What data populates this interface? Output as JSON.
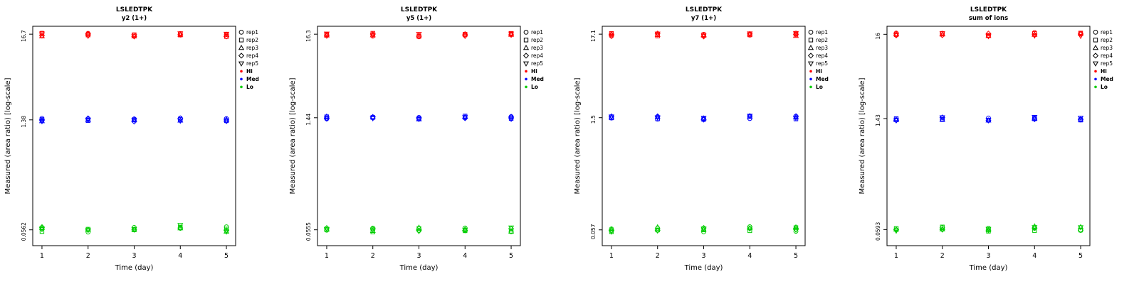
{
  "figure": {
    "background": "#FFFFFF",
    "axis_color": "#000000"
  },
  "chart_data": [
    {
      "type": "scatter",
      "title": "LSLEDTPK",
      "subtitle": "y2 (1+)",
      "xlabel": "Time (day)",
      "ylabel": "Measured (area ratio) [log-scale]",
      "x": [
        1,
        2,
        3,
        4,
        5
      ],
      "x_tick_labels": [
        "1",
        "2",
        "3",
        "4",
        "5"
      ],
      "y_tick_labels": [
        "16.7",
        "1.38",
        "0.0562"
      ],
      "yscale": "log",
      "reps": [
        {
          "label": "rep1",
          "symbol": "circle"
        },
        {
          "label": "rep2",
          "symbol": "square"
        },
        {
          "label": "rep3",
          "symbol": "triangle-up"
        },
        {
          "label": "rep4",
          "symbol": "diamond"
        },
        {
          "label": "rep5",
          "symbol": "triangle-down"
        }
      ],
      "series": [
        {
          "name": "Hi",
          "color": "#FF0000",
          "day_means": [
            16.4,
            16.5,
            16.3,
            16.6,
            16.1
          ]
        },
        {
          "name": "Med",
          "color": "#0000FF",
          "day_means": [
            1.38,
            1.4,
            1.36,
            1.39,
            1.39
          ]
        },
        {
          "name": "Lo",
          "color": "#00CD00",
          "day_means": [
            0.057,
            0.0565,
            0.056,
            0.06,
            0.057
          ]
        }
      ]
    },
    {
      "type": "scatter",
      "title": "LSLEDTPK",
      "subtitle": "y5 (1+)",
      "xlabel": "Time (day)",
      "ylabel": "Measured (area ratio) [log-scale]",
      "x": [
        1,
        2,
        3,
        4,
        5
      ],
      "x_tick_labels": [
        "1",
        "2",
        "3",
        "4",
        "5"
      ],
      "y_tick_labels": [
        "16.3",
        "1.44",
        "0.0555"
      ],
      "yscale": "log",
      "reps": [
        {
          "label": "rep1",
          "symbol": "circle"
        },
        {
          "label": "rep2",
          "symbol": "square"
        },
        {
          "label": "rep3",
          "symbol": "triangle-up"
        },
        {
          "label": "rep4",
          "symbol": "diamond"
        },
        {
          "label": "rep5",
          "symbol": "triangle-down"
        }
      ],
      "series": [
        {
          "name": "Hi",
          "color": "#FF0000",
          "day_means": [
            16.1,
            16.0,
            15.8,
            16.2,
            16.0
          ]
        },
        {
          "name": "Med",
          "color": "#0000FF",
          "day_means": [
            1.43,
            1.44,
            1.4,
            1.45,
            1.44
          ]
        },
        {
          "name": "Lo",
          "color": "#00CD00",
          "day_means": [
            0.058,
            0.056,
            0.0555,
            0.056,
            0.056
          ]
        }
      ]
    },
    {
      "type": "scatter",
      "title": "LSLEDTPK",
      "subtitle": "y7 (1+)",
      "xlabel": "Time (day)",
      "ylabel": "Measured (area ratio) [log-scale]",
      "x": [
        1,
        2,
        3,
        4,
        5
      ],
      "x_tick_labels": [
        "1",
        "2",
        "3",
        "4",
        "5"
      ],
      "y_tick_labels": [
        "17.1",
        "1.5",
        "0.057"
      ],
      "yscale": "log",
      "reps": [
        {
          "label": "rep1",
          "symbol": "circle"
        },
        {
          "label": "rep2",
          "symbol": "square"
        },
        {
          "label": "rep3",
          "symbol": "triangle-up"
        },
        {
          "label": "rep4",
          "symbol": "diamond"
        },
        {
          "label": "rep5",
          "symbol": "triangle-down"
        }
      ],
      "series": [
        {
          "name": "Hi",
          "color": "#FF0000",
          "day_means": [
            16.9,
            16.9,
            16.7,
            17.3,
            17.0
          ]
        },
        {
          "name": "Med",
          "color": "#0000FF",
          "day_means": [
            1.5,
            1.5,
            1.48,
            1.53,
            1.5
          ]
        },
        {
          "name": "Lo",
          "color": "#00CD00",
          "day_means": [
            0.058,
            0.058,
            0.057,
            0.059,
            0.058
          ]
        }
      ]
    },
    {
      "type": "scatter",
      "title": "LSLEDTPK",
      "subtitle": "sum of ions",
      "xlabel": "Time (day)",
      "ylabel": "Measured (area ratio) [log-scale]",
      "x": [
        1,
        2,
        3,
        4,
        5
      ],
      "x_tick_labels": [
        "1",
        "2",
        "3",
        "4",
        "5"
      ],
      "y_tick_labels": [
        "16",
        "1.43",
        "0.0593"
      ],
      "yscale": "log",
      "reps": [
        {
          "label": "rep1",
          "symbol": "circle"
        },
        {
          "label": "rep2",
          "symbol": "square"
        },
        {
          "label": "rep3",
          "symbol": "triangle-up"
        },
        {
          "label": "rep4",
          "symbol": "diamond"
        },
        {
          "label": "rep5",
          "symbol": "triangle-down"
        }
      ],
      "series": [
        {
          "name": "Hi",
          "color": "#FF0000",
          "day_means": [
            15.9,
            15.9,
            15.8,
            16.1,
            15.9
          ]
        },
        {
          "name": "Med",
          "color": "#0000FF",
          "day_means": [
            1.42,
            1.43,
            1.41,
            1.44,
            1.43
          ]
        },
        {
          "name": "Lo",
          "color": "#00CD00",
          "day_means": [
            0.0595,
            0.0595,
            0.059,
            0.061,
            0.0595
          ]
        }
      ]
    }
  ]
}
